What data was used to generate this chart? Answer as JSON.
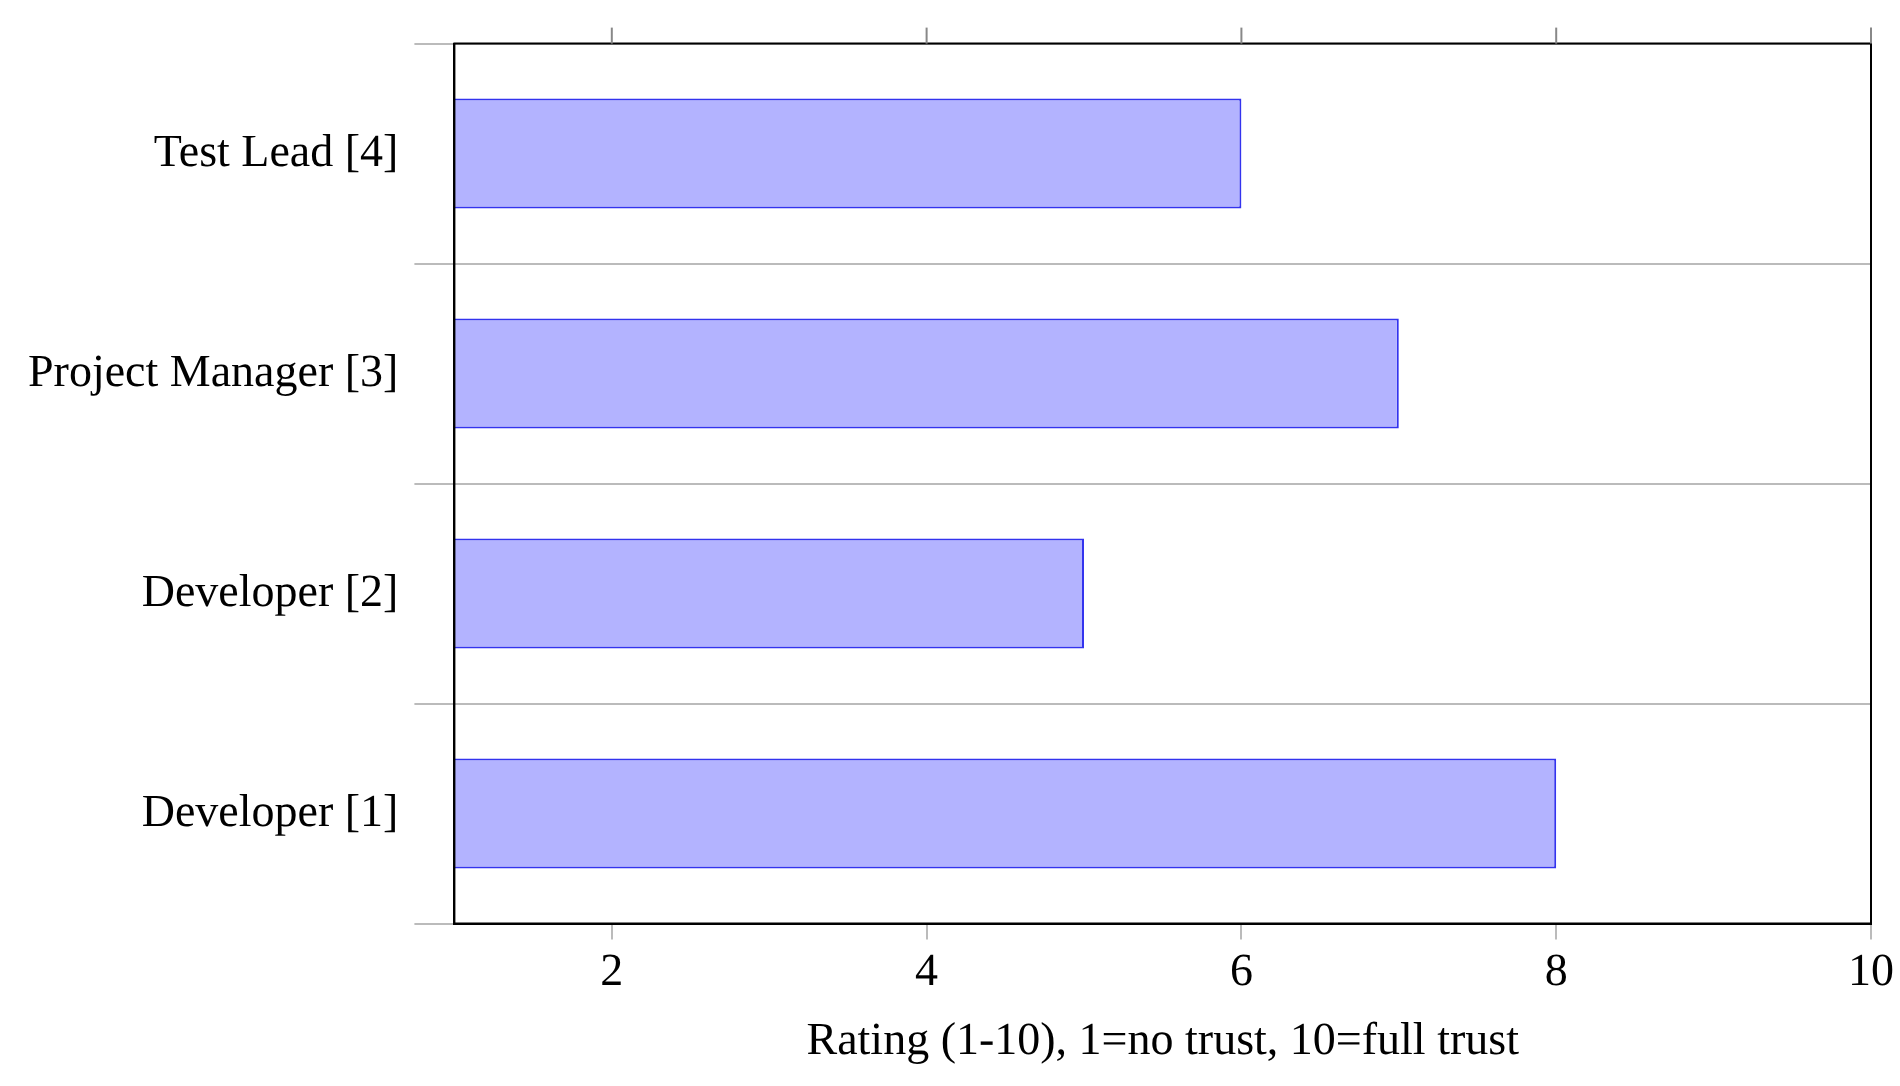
{
  "chart_data": {
    "type": "bar",
    "orientation": "horizontal",
    "xlabel": "Rating (1-10), 1=no trust, 10=full trust",
    "categories": [
      "Test Lead [4]",
      "Project Manager [3]",
      "Developer [2]",
      "Developer [1]"
    ],
    "values": [
      6,
      7,
      5,
      8
    ],
    "color": "#b3b3ff",
    "xlim": [
      1,
      10
    ],
    "xticks": [
      2,
      4,
      6,
      8,
      10
    ],
    "grid": "y",
    "legend": false
  }
}
